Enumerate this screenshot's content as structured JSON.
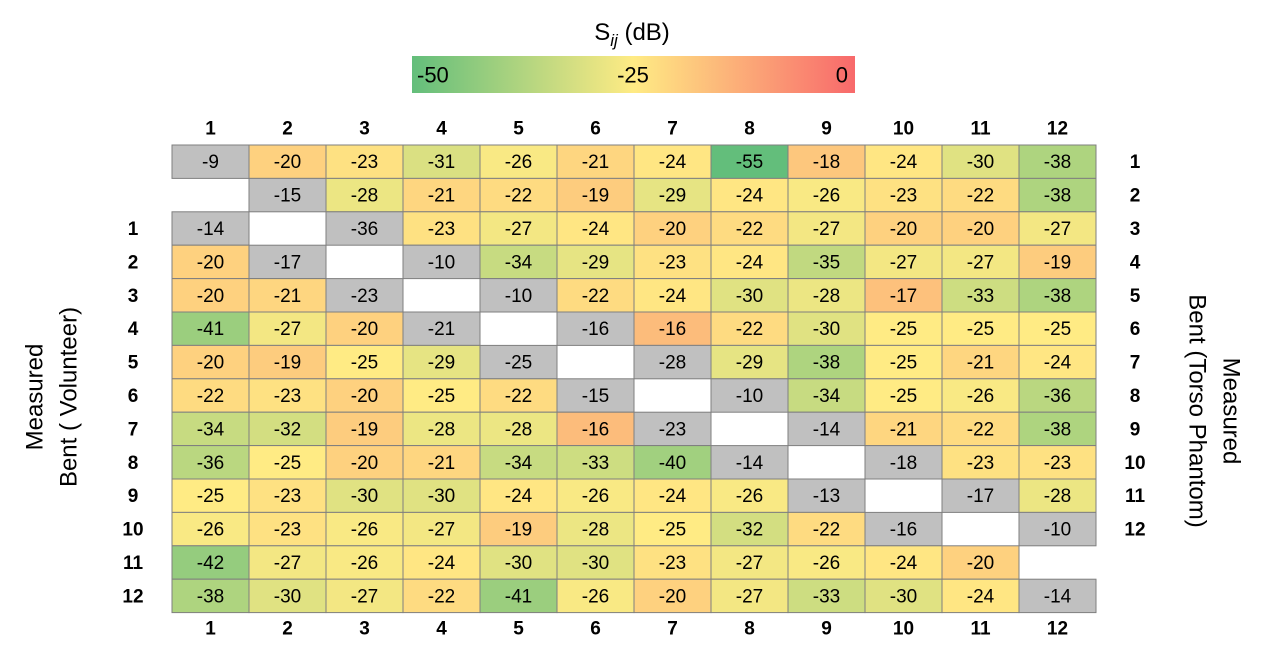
{
  "chart_data": {
    "type": "heatmap",
    "title": {
      "base": "S",
      "subscript": "ij",
      "unit": " (dB)"
    },
    "colorbar": {
      "min": -50,
      "mid": -25,
      "max": 0,
      "labels": [
        "-50",
        "-25",
        "0"
      ],
      "colors": {
        "low": "#63be7b",
        "mid": "#ffeb84",
        "high": "#f8696b"
      }
    },
    "column_labels": [
      "1",
      "2",
      "3",
      "4",
      "5",
      "6",
      "7",
      "8",
      "9",
      "10",
      "11",
      "12"
    ],
    "upper_right_labels": [
      "1",
      "2",
      "3",
      "4",
      "5",
      "6",
      "7",
      "8",
      "9",
      "10",
      "11",
      "12"
    ],
    "lower_left_labels": [
      "1",
      "2",
      "3",
      "4",
      "5",
      "6",
      "7",
      "8",
      "9",
      "10",
      "11",
      "12"
    ],
    "left_axis_label": [
      "Measured",
      "Bent ( Volunteer)"
    ],
    "right_axis_label": [
      "Measured",
      "Bent (Torso Phantom)"
    ],
    "diagonal_color": "#c0c0c0",
    "rows": [
      [
        -9,
        -20,
        -23,
        -31,
        -26,
        -21,
        -24,
        -55,
        -18,
        -24,
        -30,
        -38
      ],
      [
        null,
        -15,
        -28,
        -21,
        -22,
        -19,
        -29,
        -24,
        -26,
        -23,
        -22,
        -38
      ],
      [
        -14,
        null,
        -36,
        -23,
        -27,
        -24,
        -20,
        -22,
        -27,
        -20,
        -20,
        -27
      ],
      [
        -20,
        -17,
        null,
        -10,
        -34,
        -29,
        -23,
        -24,
        -35,
        -27,
        -27,
        -19
      ],
      [
        -20,
        -21,
        -23,
        null,
        -10,
        -22,
        -24,
        -30,
        -28,
        -17,
        -33,
        -38
      ],
      [
        -41,
        -27,
        -20,
        -21,
        null,
        -16,
        -16,
        -22,
        -30,
        -25,
        -25,
        -25
      ],
      [
        -20,
        -19,
        -25,
        -29,
        -25,
        null,
        -28,
        -29,
        -38,
        -25,
        -21,
        -24
      ],
      [
        -22,
        -23,
        -20,
        -25,
        -22,
        -15,
        null,
        -10,
        -34,
        -25,
        -26,
        -36
      ],
      [
        -34,
        -32,
        -19,
        -28,
        -28,
        -16,
        -23,
        null,
        -14,
        -21,
        -22,
        -38
      ],
      [
        -36,
        -25,
        -20,
        -21,
        -34,
        -33,
        -40,
        -14,
        null,
        -18,
        -23,
        -23
      ],
      [
        -25,
        -23,
        -30,
        -30,
        -24,
        -26,
        -24,
        -26,
        -13,
        null,
        -17,
        -28
      ],
      [
        -26,
        -23,
        -26,
        -27,
        -19,
        -28,
        -25,
        -32,
        -22,
        -16,
        null,
        -10
      ],
      [
        -42,
        -27,
        -26,
        -24,
        -30,
        -30,
        -23,
        -27,
        -26,
        -24,
        -20,
        null
      ],
      [
        -38,
        -30,
        -27,
        -22,
        -41,
        -26,
        -20,
        -27,
        -33,
        -30,
        -24,
        -14
      ]
    ],
    "gray_cells": [
      [
        0,
        0
      ],
      [
        1,
        1
      ],
      [
        2,
        0
      ],
      [
        2,
        2
      ],
      [
        3,
        1
      ],
      [
        3,
        3
      ],
      [
        4,
        2
      ],
      [
        4,
        4
      ],
      [
        5,
        3
      ],
      [
        5,
        5
      ],
      [
        6,
        4
      ],
      [
        6,
        6
      ],
      [
        7,
        5
      ],
      [
        7,
        7
      ],
      [
        8,
        6
      ],
      [
        8,
        8
      ],
      [
        9,
        7
      ],
      [
        9,
        9
      ],
      [
        10,
        8
      ],
      [
        10,
        10
      ],
      [
        11,
        9
      ],
      [
        11,
        11
      ],
      [
        13,
        11
      ]
    ]
  }
}
